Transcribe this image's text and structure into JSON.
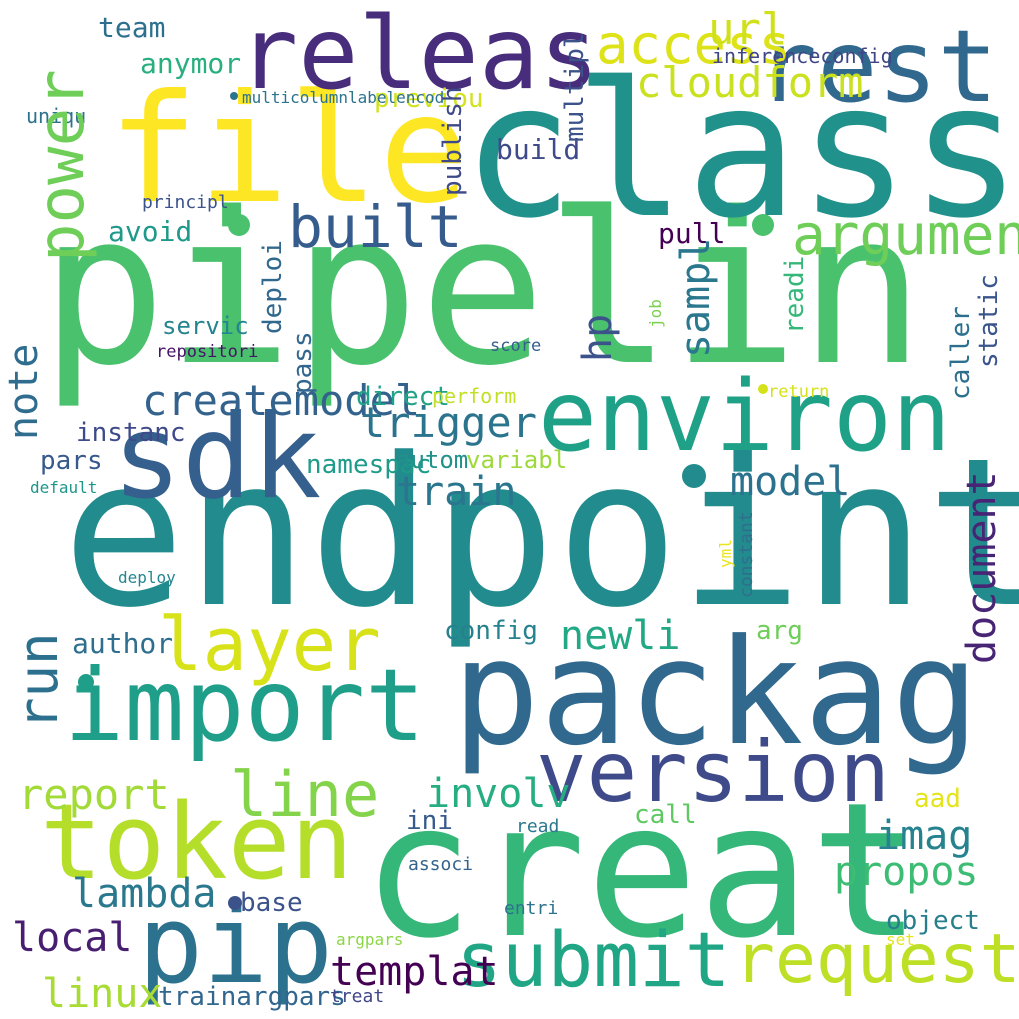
{
  "words": [
    {
      "text": "pipelin",
      "color": "#4ac16d"
    },
    {
      "text": "endpoint",
      "color": "#228b8d"
    },
    {
      "text": "class",
      "color": "#21918c"
    },
    {
      "text": "creat",
      "color": "#35b779"
    },
    {
      "text": "packag",
      "color": "#31688e"
    },
    {
      "text": "file",
      "color": "#fde725"
    },
    {
      "text": "releas",
      "color": "#472d7b"
    },
    {
      "text": "rest",
      "color": "#31688e"
    },
    {
      "text": "sdk",
      "color": "#355f8d"
    },
    {
      "text": "environ",
      "color": "#1fa187"
    },
    {
      "text": "token",
      "color": "#b5de2b"
    },
    {
      "text": "import",
      "color": "#1f9e89"
    },
    {
      "text": "version",
      "color": "#3e4a89"
    },
    {
      "text": "pip",
      "color": "#2c728e"
    },
    {
      "text": "submit",
      "color": "#21a685"
    },
    {
      "text": "request",
      "color": "#bddf26"
    },
    {
      "text": "layer",
      "color": "#d8e219"
    },
    {
      "text": "built",
      "color": "#6ece58"
    },
    {
      "text": "argument",
      "color": "#365c8d"
    },
    {
      "text": "access",
      "color": "#6ece58"
    },
    {
      "text": "url",
      "color": "#dde318"
    },
    {
      "text": "cloudform",
      "color": "#d0e11c"
    },
    {
      "text": "line",
      "color": "#cae11f"
    },
    {
      "text": "train",
      "color": "#84d44b"
    },
    {
      "text": "trigger",
      "color": "#2d708e"
    },
    {
      "text": "createmodel",
      "color": "#2a768e"
    },
    {
      "text": "model",
      "color": "#2b748e"
    },
    {
      "text": "newli",
      "color": "#33638d"
    },
    {
      "text": "report",
      "color": "#2c728e"
    },
    {
      "text": "involv",
      "color": "#22a884"
    },
    {
      "text": "lambda",
      "color": "#a2da37"
    },
    {
      "text": "imag",
      "color": "#26ad81"
    },
    {
      "text": "propos",
      "color": "#2a788e"
    },
    {
      "text": "local",
      "color": "#26828e"
    },
    {
      "text": "templat",
      "color": "#3dbc74"
    },
    {
      "text": "linux",
      "color": "#481f70"
    },
    {
      "text": "build",
      "color": "#440154"
    },
    {
      "text": "team",
      "color": "#a8db34"
    },
    {
      "text": "anymor",
      "color": "#2f6c8e"
    },
    {
      "text": "previou",
      "color": "#482475"
    },
    {
      "text": "avoid",
      "color": "#3b528b"
    },
    {
      "text": "pull",
      "color": "#2a778e"
    },
    {
      "text": "instanc",
      "color": "#3b528b"
    },
    {
      "text": "pars",
      "color": "#3e4989"
    },
    {
      "text": "direct",
      "color": "#3e4a89"
    },
    {
      "text": "namespac",
      "color": "#2d708e"
    },
    {
      "text": "autom",
      "color": "#29af7f"
    },
    {
      "text": "variabl",
      "color": "#d2e21b"
    },
    {
      "text": "config",
      "color": "#1f9a8a"
    },
    {
      "text": "arg",
      "color": "#440154"
    },
    {
      "text": "author",
      "color": "#3e4a89"
    },
    {
      "text": "call",
      "color": "#38598c"
    },
    {
      "text": "aad",
      "color": "#20a386"
    },
    {
      "text": "ini",
      "color": "#1e9c89"
    },
    {
      "text": "read",
      "color": "#21918c"
    },
    {
      "text": "base",
      "color": "#9dd93b"
    },
    {
      "text": "object",
      "color": "#26828e"
    },
    {
      "text": "trainargpars",
      "color": "#6ece58"
    },
    {
      "text": "treat",
      "color": "#2e6e8e"
    },
    {
      "text": "argpars",
      "color": "#5ec962"
    },
    {
      "text": "entri",
      "color": "#e5e419"
    },
    {
      "text": "set",
      "color": "#375a8c"
    },
    {
      "text": "associ",
      "color": "#2a788e"
    },
    {
      "text": "perform",
      "color": "#3b528b"
    },
    {
      "text": "return",
      "color": "#277f8e"
    },
    {
      "text": "servic",
      "color": "#31668e"
    },
    {
      "text": "repositori",
      "color": "#3f4788"
    },
    {
      "text": "score",
      "color": "#8bd646"
    },
    {
      "text": "deploy",
      "color": "#2c738e"
    },
    {
      "text": "default",
      "color": "#e8e419"
    },
    {
      "text": "uniqu",
      "color": "#33638d"
    },
    {
      "text": "multicolumnlabelencod",
      "color": "#c0df25"
    },
    {
      "text": "inferenceconfig",
      "color": "#d5e21a"
    },
    {
      "text": "principl",
      "color": "#2d708e"
    },
    {
      "text": "power",
      "color": "#3a548c"
    },
    {
      "text": "run",
      "color": "#35b779"
    },
    {
      "text": "note",
      "color": "#31688e"
    },
    {
      "text": "document",
      "color": "#31668e"
    },
    {
      "text": "hp",
      "color": "#25848e"
    },
    {
      "text": "sampl",
      "color": "#471365"
    },
    {
      "text": "multipl",
      "color": "#355f8d"
    },
    {
      "text": "publish",
      "color": "#7ad151"
    },
    {
      "text": "caller",
      "color": "#eae51a"
    },
    {
      "text": "static",
      "color": "#2e6f8e"
    },
    {
      "text": "readi",
      "color": "#24868e"
    },
    {
      "text": "deploi",
      "color": "#1f968b"
    },
    {
      "text": "pass",
      "color": "#2c728e"
    },
    {
      "text": "job",
      "color": "#2c738e"
    },
    {
      "text": "yml",
      "color": "#404588"
    },
    {
      "text": "constant",
      "color": "#3b528b"
    }
  ]
}
